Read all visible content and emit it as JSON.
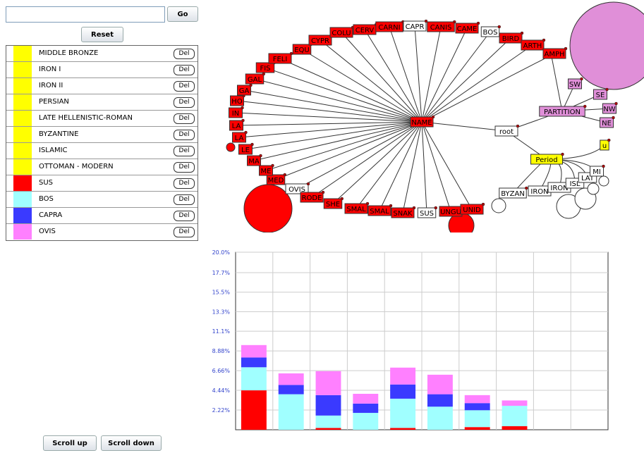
{
  "search": {
    "button": "Go"
  },
  "reset": "Reset",
  "legend": [
    {
      "label": "MIDDLE BRONZE",
      "color": "#ffff00",
      "action": "Del"
    },
    {
      "label": "IRON I",
      "color": "#ffff00",
      "action": "Del"
    },
    {
      "label": "IRON II",
      "color": "#ffff00",
      "action": "Del"
    },
    {
      "label": "PERSIAN",
      "color": "#ffff00",
      "action": "Del"
    },
    {
      "label": "LATE HELLENISTIC-ROMAN",
      "color": "#ffff00",
      "action": "Del"
    },
    {
      "label": "BYZANTINE",
      "color": "#ffff00",
      "action": "Del"
    },
    {
      "label": "ISLAMIC",
      "color": "#ffff00",
      "action": "Del"
    },
    {
      "label": "OTTOMAN - MODERN",
      "color": "#ffff00",
      "action": "Del"
    },
    {
      "label": "SUS",
      "color": "#ff0000",
      "action": "Del"
    },
    {
      "label": "BOS",
      "color": "#a0ffff",
      "action": "Del"
    },
    {
      "label": "CAPRA",
      "color": "#3a3aff",
      "action": "Del"
    },
    {
      "label": "OVIS",
      "color": "#ff80ff",
      "action": "Del"
    }
  ],
  "tree": {
    "nodes": [
      {
        "label": "NAME",
        "color": "#ff0000"
      },
      {
        "label": "root",
        "color": "#ffffff"
      },
      {
        "label": "PARTITION",
        "color": "#e08fd8"
      },
      {
        "label": "SW",
        "color": "#e08fd8"
      },
      {
        "label": "SE",
        "color": "#e08fd8"
      },
      {
        "label": "NW",
        "color": "#e08fd8"
      },
      {
        "label": "NE",
        "color": "#e08fd8"
      },
      {
        "label": "Period",
        "color": "#ffff00"
      },
      {
        "label": "u",
        "color": "#ffff00"
      },
      {
        "label": "BYZAN",
        "color": "#ffffff"
      },
      {
        "label": "IRON",
        "color": "#ffffff"
      },
      {
        "label": "IRON",
        "color": "#ffffff"
      },
      {
        "label": "ISL",
        "color": "#ffffff"
      },
      {
        "label": "LAT",
        "color": "#ffffff"
      },
      {
        "label": "MI",
        "color": "#ffffff"
      },
      {
        "label": "OVIS",
        "color": "#ffffff"
      },
      {
        "label": "MED",
        "color": "#ff0000"
      },
      {
        "label": "ME",
        "color": "#ff0000"
      },
      {
        "label": "MA",
        "color": "#ff0000"
      },
      {
        "label": "LE",
        "color": "#ff0000"
      },
      {
        "label": "LA",
        "color": "#ff0000"
      },
      {
        "label": "LA",
        "color": "#ff0000"
      },
      {
        "label": "IN",
        "color": "#ff0000"
      },
      {
        "label": "HO",
        "color": "#ff0000"
      },
      {
        "label": "GA",
        "color": "#ff0000"
      },
      {
        "label": "GAL",
        "color": "#ff0000"
      },
      {
        "label": "FIS",
        "color": "#ff0000"
      },
      {
        "label": "FELI",
        "color": "#ff0000"
      },
      {
        "label": "EQU",
        "color": "#ff0000"
      },
      {
        "label": "CYPR",
        "color": "#ff0000"
      },
      {
        "label": "COLU",
        "color": "#ff0000"
      },
      {
        "label": "CERV",
        "color": "#ff0000"
      },
      {
        "label": "CARNI",
        "color": "#ff0000"
      },
      {
        "label": "CAPR",
        "color": "#ffffff"
      },
      {
        "label": "CANIS",
        "color": "#ff0000"
      },
      {
        "label": "CAME",
        "color": "#ff0000"
      },
      {
        "label": "BOS",
        "color": "#ffffff"
      },
      {
        "label": "BIRD",
        "color": "#ff0000"
      },
      {
        "label": "ARTH",
        "color": "#ff0000"
      },
      {
        "label": "AMPH",
        "color": "#ff0000"
      },
      {
        "label": "RODE",
        "color": "#ff0000"
      },
      {
        "label": "SHE",
        "color": "#ff0000"
      },
      {
        "label": "SMAL",
        "color": "#ff0000"
      },
      {
        "label": "SMAL",
        "color": "#ff0000"
      },
      {
        "label": "SNAK",
        "color": "#ff0000"
      },
      {
        "label": "SUS",
        "color": "#ffffff"
      },
      {
        "label": "UNGU",
        "color": "#ff0000"
      },
      {
        "label": "UNID",
        "color": "#ff0000"
      }
    ]
  },
  "chart_data": {
    "type": "bar",
    "stacked": true,
    "grid": true,
    "categories": [
      null,
      null,
      null,
      null,
      null,
      null,
      null,
      null,
      null,
      null
    ],
    "series": [
      {
        "color": "#ff0000",
        "values": [
          4.44,
          0,
          0.2,
          0,
          0.2,
          0,
          0.3,
          0.4,
          null,
          null
        ]
      },
      {
        "color": "#a0ffff",
        "values": [
          2.6,
          4.0,
          1.4,
          1.9,
          3.3,
          2.6,
          1.9,
          2.3,
          null,
          null
        ]
      },
      {
        "color": "#3a3aff",
        "values": [
          1.1,
          1.05,
          2.3,
          1.05,
          1.6,
          1.4,
          0.8,
          0,
          null,
          null
        ]
      },
      {
        "color": "#ff80ff",
        "values": [
          1.4,
          1.3,
          2.7,
          1.1,
          1.9,
          2.2,
          0.9,
          0.6,
          null,
          null
        ]
      }
    ],
    "ylim": [
      0,
      20
    ],
    "yticks": [
      {
        "value": 2.22,
        "label": "2.22%"
      },
      {
        "value": 4.44,
        "label": "4.44%"
      },
      {
        "value": 6.66,
        "label": "6.66%"
      },
      {
        "value": 8.88,
        "label": "8.88%"
      },
      {
        "value": 11.1,
        "label": "11.1%"
      },
      {
        "value": 13.3,
        "label": "13.3%"
      },
      {
        "value": 15.5,
        "label": "15.5%"
      },
      {
        "value": 17.7,
        "label": "17.7%"
      },
      {
        "value": 20.0,
        "label": "20.0%"
      }
    ]
  },
  "scroll": {
    "up": "Scroll up",
    "down": "Scroll down"
  }
}
